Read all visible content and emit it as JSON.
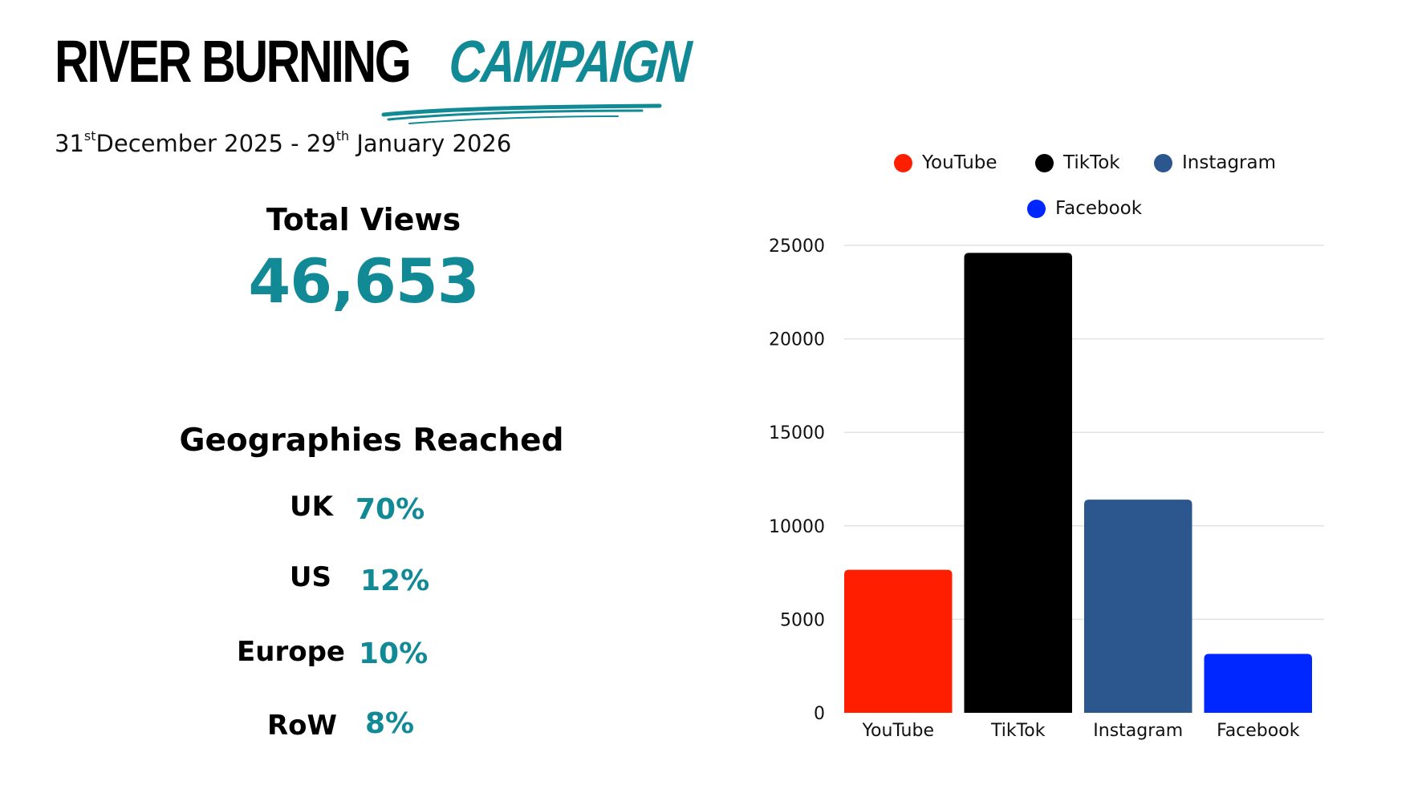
{
  "header": {
    "title_main": "RIVER BURNING",
    "title_accent": "CAMPAIGN",
    "date_start_day": "31",
    "date_start_suffix": "st",
    "date_start_rest": "December 2025 - 29",
    "date_end_suffix": "th",
    "date_end_rest": " January 2026"
  },
  "stats": {
    "total_views_label": "Total Views",
    "total_views_value": "46,653"
  },
  "geographies": {
    "heading": "Geographies Reached",
    "items": [
      {
        "region": "UK",
        "percent": "70%"
      },
      {
        "region": "US",
        "percent": "12%"
      },
      {
        "region": "Europe",
        "percent": "10%"
      },
      {
        "region": "RoW",
        "percent": "8%"
      }
    ]
  },
  "colors": {
    "accent": "#128a96",
    "youtube": "#ff1e00",
    "tiktok": "#000000",
    "instagram": "#2b568e",
    "facebook": "#0027ff",
    "gridline": "#e2e2e2"
  },
  "chart_data": {
    "type": "bar",
    "categories": [
      "YouTube",
      "TikTok",
      "Instagram",
      "Facebook"
    ],
    "values": [
      7650,
      24600,
      11400,
      3150
    ],
    "colors": [
      "#ff1e00",
      "#000000",
      "#2b568e",
      "#0027ff"
    ],
    "legend": [
      "YouTube",
      "TikTok",
      "Instagram",
      "Facebook"
    ],
    "legend_position": "top",
    "title": "",
    "xlabel": "",
    "ylabel": "",
    "ylim": [
      0,
      25000
    ],
    "yticks": [
      "0",
      "5000",
      "10000",
      "15000",
      "20000",
      "25000"
    ],
    "grid": true
  }
}
